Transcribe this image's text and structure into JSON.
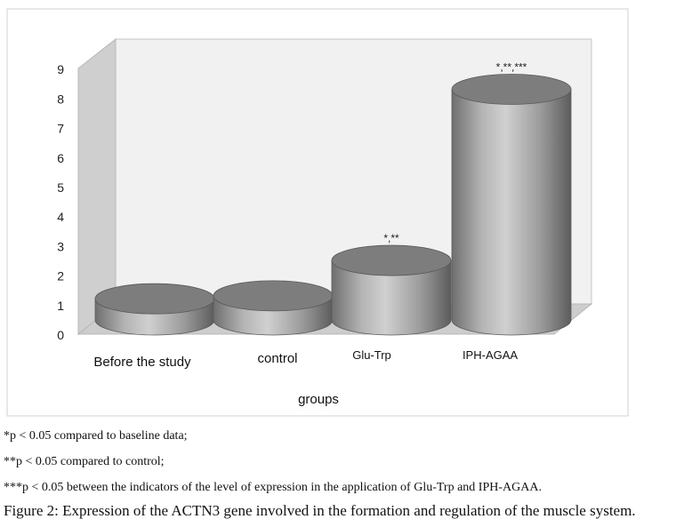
{
  "chart_data": {
    "type": "bar",
    "style": "3d-cylinder",
    "categories": [
      "Before the study",
      "control",
      "Glu-Trp",
      "IPH-AGAA"
    ],
    "values": [
      1.5,
      1.6,
      2.8,
      8.6
    ],
    "annotations": [
      "",
      "",
      "*,**",
      "*,**,***"
    ],
    "xlabel": "groups",
    "ylabel": "",
    "ylim": [
      0,
      9
    ],
    "yticks": [
      "0",
      "1",
      "2",
      "3",
      "4",
      "5",
      "6",
      "7",
      "8",
      "9"
    ],
    "grid": false
  },
  "notes": [
    "*p < 0.05 compared to baseline  data;",
    "**p < 0.05 compared to control;",
    "***p < 0.05 between the indicators of the level of expression in the application of Glu-Trp  and IPH-AGAA."
  ],
  "caption": "Figure 2: Expression of the ACTN3 gene involved in the formation and regulation of the  muscle system."
}
